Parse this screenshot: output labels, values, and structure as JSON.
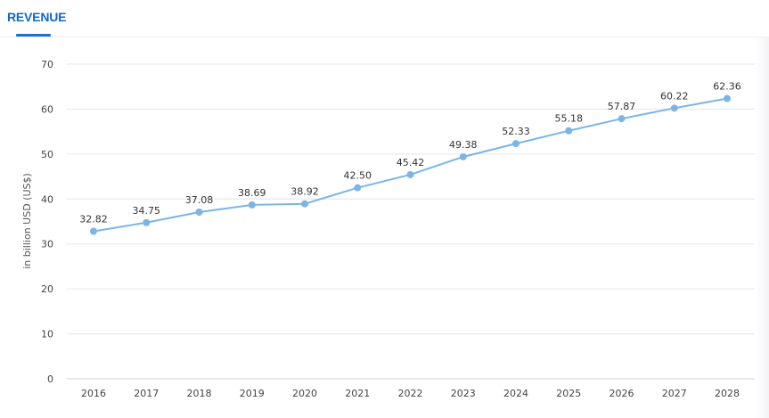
{
  "tabs": [
    {
      "label": "REVENUE",
      "active": true
    }
  ],
  "colors": {
    "accent": "#1166cc",
    "series_line": "#7cb5e4",
    "grid": "#e6e6e6"
  },
  "chart_data": {
    "type": "line",
    "title": "",
    "xlabel": "",
    "ylabel": "in billion USD (US$)",
    "categories": [
      "2016",
      "2017",
      "2018",
      "2019",
      "2020",
      "2021",
      "2022",
      "2023",
      "2024",
      "2025",
      "2026",
      "2027",
      "2028"
    ],
    "series": [
      {
        "values": [
          32.82,
          34.75,
          37.08,
          38.69,
          38.92,
          42.5,
          45.42,
          49.38,
          52.33,
          55.18,
          57.87,
          60.22,
          62.36
        ]
      }
    ],
    "data_labels": [
      "32.82",
      "34.75",
      "37.08",
      "38.69",
      "38.92",
      "42.50",
      "45.42",
      "49.38",
      "52.33",
      "55.18",
      "57.87",
      "60.22",
      "62.36"
    ],
    "yticks": [
      "0",
      "10",
      "20",
      "30",
      "40",
      "50",
      "60",
      "70"
    ],
    "ylim": [
      0,
      70
    ],
    "grid": true,
    "legend": false
  }
}
